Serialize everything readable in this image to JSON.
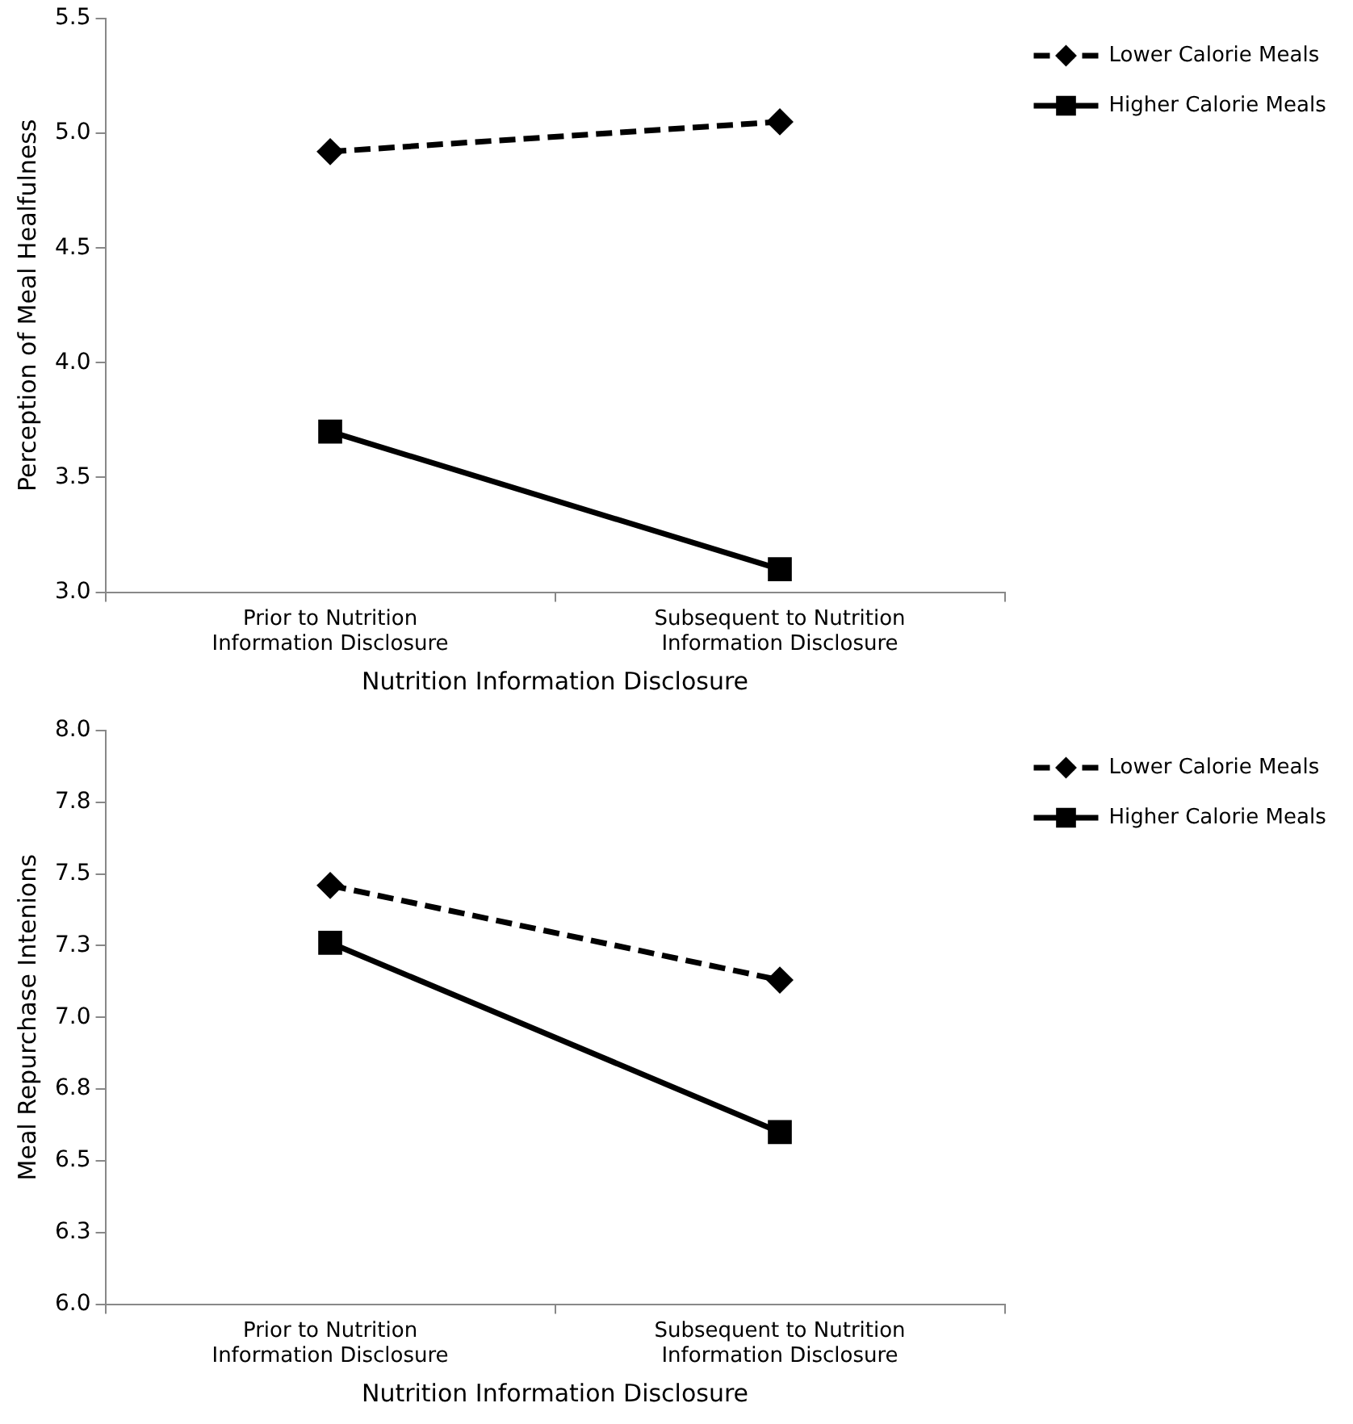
{
  "chart_data": [
    {
      "type": "line",
      "xlabel": "Nutrition Information Disclosure",
      "ylabel": "Perception of Meal Healfulness",
      "categories": [
        "Prior to Nutrition Information Disclosure",
        "Subsequent to Nutrition Information Disclosure"
      ],
      "series": [
        {
          "name": "Lower Calorie Meals",
          "color": "#000000",
          "values": [
            4.92,
            5.05
          ],
          "marker": "diamond",
          "line_style": "dashed"
        },
        {
          "name": "Higher Calorie Meals",
          "color": "#000000",
          "values": [
            3.7,
            3.1
          ],
          "marker": "square",
          "line_style": "solid"
        }
      ],
      "ylim": [
        3.0,
        5.5
      ],
      "yticks": [
        {
          "value": 3,
          "label": "3.0"
        },
        {
          "value": 3.5,
          "label": "3.5"
        },
        {
          "value": 4,
          "label": "4.0"
        },
        {
          "value": 4.5,
          "label": "4.5"
        },
        {
          "value": 5,
          "label": "5.0"
        },
        {
          "value": 5.5,
          "label": "5.5"
        }
      ],
      "grid": false,
      "legend": "right"
    },
    {
      "type": "line",
      "xlabel": "Nutrition Information Disclosure",
      "ylabel": "Meal Repurchase Intenions",
      "categories": [
        "Prior to Nutrition Information Disclosure",
        "Subsequent to Nutrition Information Disclosure"
      ],
      "series": [
        {
          "name": "Lower Calorie Meals",
          "color": "#000000",
          "values": [
            7.46,
            7.13
          ],
          "marker": "diamond",
          "line_style": "dashed"
        },
        {
          "name": "Higher Calorie Meals",
          "color": "#000000",
          "values": [
            7.26,
            6.6
          ],
          "marker": "square",
          "line_style": "solid"
        }
      ],
      "ylim": [
        6.0,
        8.0
      ],
      "yticks": [
        {
          "value": 6,
          "label": "6.0"
        },
        {
          "value": 6.25,
          "label": "6.3"
        },
        {
          "value": 6.5,
          "label": "6.5"
        },
        {
          "value": 6.75,
          "label": "6.8"
        },
        {
          "value": 7,
          "label": "7.0"
        },
        {
          "value": 7.25,
          "label": "7.3"
        },
        {
          "value": 7.5,
          "label": "7.5"
        },
        {
          "value": 7.75,
          "label": "7.8"
        },
        {
          "value": 8,
          "label": "8.0"
        }
      ],
      "grid": false,
      "legend": "right"
    }
  ]
}
